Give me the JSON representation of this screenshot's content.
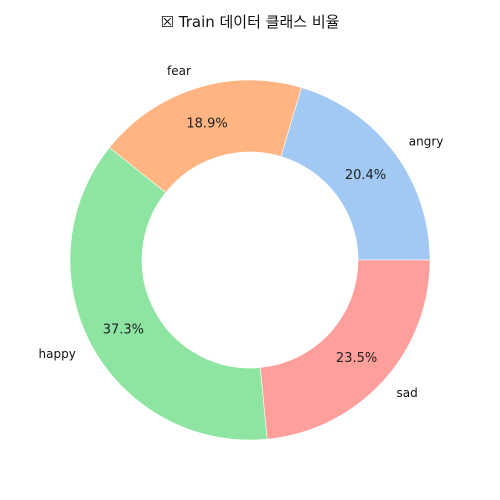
{
  "chart_data": {
    "type": "pie",
    "title": "☒ Train 데이터 클래스 비율",
    "donut": true,
    "start_angle_deg": 0,
    "direction": "counterclockwise",
    "slices": [
      {
        "label": "angry",
        "value": 20.4,
        "pct_label": "20.4%",
        "color": "#a1c9f4"
      },
      {
        "label": "fear",
        "value": 18.9,
        "pct_label": "18.9%",
        "color": "#ffb482"
      },
      {
        "label": "happy",
        "value": 37.3,
        "pct_label": "37.3%",
        "color": "#8de5a1"
      },
      {
        "label": "sad",
        "value": 23.5,
        "pct_label": "23.5%",
        "color": "#ff9f9b"
      }
    ]
  }
}
